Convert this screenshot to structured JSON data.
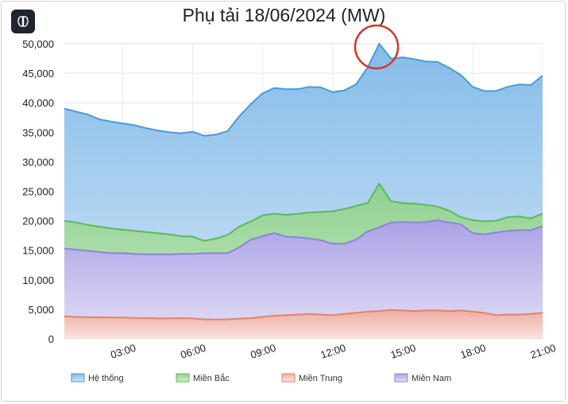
{
  "toolbar": {
    "menu_icon": "brain-icon"
  },
  "chart_data": {
    "type": "area",
    "title": "Phụ tải 18/06/2024 (MW)",
    "xlabel": "",
    "ylabel": "",
    "x_ticks": [
      "03:00",
      "06:00",
      "09:00",
      "12:00",
      "15:00",
      "18:00",
      "21:00"
    ],
    "y_ticks": [
      "0",
      "5,000",
      "10,000",
      "15,000",
      "20,000",
      "25,000",
      "30,000",
      "35,000",
      "40,000",
      "45,000",
      "50,000"
    ],
    "xlim": [
      "00:30",
      "21:00"
    ],
    "ylim": [
      0,
      50000
    ],
    "grid": true,
    "legend_position": "bottom",
    "x": [
      "00:30",
      "01:00",
      "01:30",
      "02:00",
      "02:30",
      "03:00",
      "03:30",
      "04:00",
      "04:30",
      "05:00",
      "05:30",
      "06:00",
      "06:30",
      "07:00",
      "07:30",
      "08:00",
      "08:30",
      "09:00",
      "09:30",
      "10:00",
      "10:30",
      "11:00",
      "11:30",
      "12:00",
      "12:30",
      "13:00",
      "13:30",
      "14:00",
      "14:30",
      "15:00",
      "15:30",
      "16:00",
      "16:30",
      "17:00",
      "17:30",
      "18:00",
      "18:30",
      "19:00",
      "19:30",
      "20:00",
      "20:30",
      "21:00"
    ],
    "series": [
      {
        "name": "Hệ thống",
        "color": "#4a9ad6",
        "values": [
          39000,
          38500,
          38000,
          37200,
          36800,
          36500,
          36200,
          35700,
          35300,
          35000,
          34800,
          35100,
          34400,
          34600,
          35200,
          37700,
          39800,
          41600,
          42500,
          42300,
          42300,
          42700,
          42600,
          41800,
          42100,
          43100,
          46000,
          50000,
          47500,
          47700,
          47400,
          47000,
          46900,
          45900,
          44700,
          42700,
          42000,
          42000,
          42700,
          43100,
          43000,
          44600
        ]
      },
      {
        "name": "Miền Bắc",
        "color": "#5cb85c",
        "values": [
          20000,
          19700,
          19300,
          19000,
          18700,
          18500,
          18300,
          18100,
          17900,
          17700,
          17400,
          17300,
          16600,
          17000,
          17600,
          19000,
          19900,
          20900,
          21200,
          21000,
          21200,
          21400,
          21500,
          21600,
          22000,
          22500,
          23000,
          26300,
          23300,
          23000,
          22900,
          22700,
          22400,
          21700,
          20600,
          20100,
          19900,
          20000,
          20600,
          20700,
          20400,
          21200
        ]
      },
      {
        "name": "Miền Trung",
        "color": "#e8806a",
        "values": [
          3800,
          3700,
          3650,
          3650,
          3600,
          3600,
          3550,
          3500,
          3450,
          3450,
          3500,
          3450,
          3300,
          3250,
          3300,
          3400,
          3500,
          3700,
          3900,
          4000,
          4100,
          4200,
          4100,
          4000,
          4200,
          4400,
          4600,
          4700,
          4900,
          4800,
          4700,
          4800,
          4800,
          4700,
          4800,
          4600,
          4400,
          4000,
          4100,
          4100,
          4200,
          4400
        ]
      },
      {
        "name": "Miền Nam",
        "color": "#8c84d8",
        "values": [
          15300,
          15100,
          14900,
          14700,
          14500,
          14500,
          14400,
          14300,
          14300,
          14300,
          14400,
          14400,
          14500,
          14500,
          14500,
          15500,
          16800,
          17400,
          17900,
          17300,
          17200,
          17000,
          16700,
          16100,
          16100,
          16800,
          18200,
          18900,
          19700,
          19800,
          19700,
          19800,
          20100,
          19700,
          19400,
          17900,
          17700,
          18000,
          18300,
          18400,
          18400,
          19100
        ]
      }
    ]
  }
}
